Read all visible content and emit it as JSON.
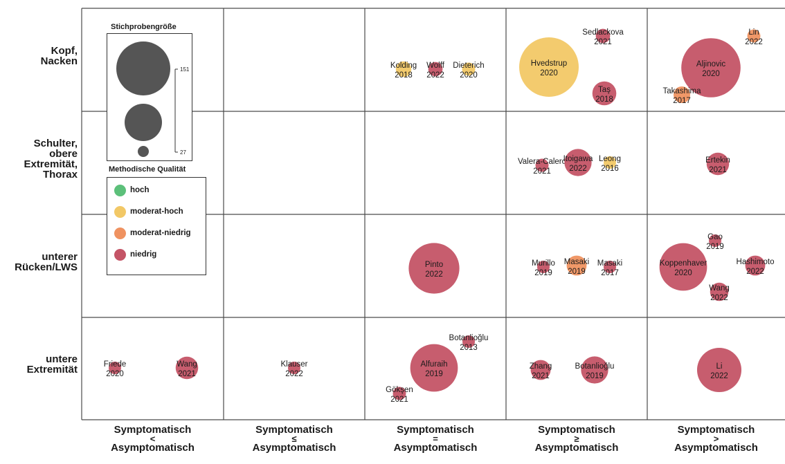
{
  "chart_data": {
    "type": "bubble-matrix",
    "rows": [
      {
        "id": "kopf",
        "lines": [
          "Kopf,",
          "Nacken"
        ]
      },
      {
        "id": "schulter",
        "lines": [
          "Schulter,",
          "obere",
          "Extremität,",
          "Thorax"
        ]
      },
      {
        "id": "ruecken",
        "lines": [
          "unterer",
          "Rücken/LWS"
        ]
      },
      {
        "id": "untere",
        "lines": [
          "untere",
          "Extremität"
        ]
      }
    ],
    "columns": [
      {
        "id": "lt",
        "top": "Symptomatisch",
        "sym": "<",
        "bottom": "Asymptomatisch"
      },
      {
        "id": "le",
        "top": "Symptomatisch",
        "sym": "≤",
        "bottom": "Asymptomatisch"
      },
      {
        "id": "eq",
        "top": "Symptomatisch",
        "sym": "=",
        "bottom": "Asymptomatisch"
      },
      {
        "id": "ge",
        "top": "Symptomatisch",
        "sym": "≥",
        "bottom": "Asymptomatisch"
      },
      {
        "id": "gt",
        "top": "Symptomatisch",
        "sym": ">",
        "bottom": "Asymptomatisch"
      }
    ],
    "quality_colors": {
      "hoch": "#5cc07a",
      "moderat-hoch": "#f2c866",
      "moderat-niedrig": "#ef9260",
      "niedrig": "#c45466"
    },
    "legend": {
      "size_title": "Stichprobengröße",
      "size_max_label": "151",
      "size_min_label": "27",
      "quality_title": "Methodische Qualität",
      "quality_items": [
        {
          "key": "hoch",
          "label": "hoch"
        },
        {
          "key": "moderat-hoch",
          "label": "moderat-hoch"
        },
        {
          "key": "moderat-niedrig",
          "label": "moderat-niedrig"
        },
        {
          "key": "niedrig",
          "label": "niedrig"
        }
      ]
    },
    "studies": [
      {
        "author": "Kolding",
        "year": "2018",
        "row": 0,
        "col": 2,
        "quality": "moderat-hoch",
        "size": 32
      },
      {
        "author": "Wolff",
        "year": "2022",
        "row": 0,
        "col": 2,
        "quality": "niedrig",
        "size": 30
      },
      {
        "author": "Dieterich",
        "year": "2020",
        "row": 0,
        "col": 2,
        "quality": "moderat-hoch",
        "size": 28
      },
      {
        "author": "Hvedstrup",
        "year": "2020",
        "row": 0,
        "col": 3,
        "quality": "moderat-hoch",
        "size": 151
      },
      {
        "author": "Sedlackova",
        "year": "2021",
        "row": 0,
        "col": 3,
        "quality": "niedrig",
        "size": 30
      },
      {
        "author": "Taş",
        "year": "2018",
        "row": 0,
        "col": 3,
        "quality": "niedrig",
        "size": 48
      },
      {
        "author": "Lin",
        "year": "2022",
        "row": 0,
        "col": 4,
        "quality": "moderat-niedrig",
        "size": 28
      },
      {
        "author": "Aljinovic",
        "year": "2020",
        "row": 0,
        "col": 4,
        "quality": "niedrig",
        "size": 150
      },
      {
        "author": "Takashima",
        "year": "2017",
        "row": 0,
        "col": 4,
        "quality": "moderat-niedrig",
        "size": 34
      },
      {
        "author": "Valera-Calero",
        "year": "2021",
        "row": 1,
        "col": 3,
        "quality": "niedrig",
        "size": 28
      },
      {
        "author": "Itoigawa",
        "year": "2022",
        "row": 1,
        "col": 3,
        "quality": "niedrig",
        "size": 55
      },
      {
        "author": "Leong",
        "year": "2016",
        "row": 1,
        "col": 3,
        "quality": "moderat-hoch",
        "size": 27
      },
      {
        "author": "Ertekin",
        "year": "2021",
        "row": 1,
        "col": 4,
        "quality": "niedrig",
        "size": 45
      },
      {
        "author": "Pinto",
        "year": "2022",
        "row": 2,
        "col": 2,
        "quality": "niedrig",
        "size": 120
      },
      {
        "author": "Murillo",
        "year": "2019",
        "row": 2,
        "col": 3,
        "quality": "niedrig",
        "size": 27
      },
      {
        "author": "Masaki",
        "year": "2019",
        "row": 2,
        "col": 3,
        "quality": "moderat-niedrig",
        "size": 40
      },
      {
        "author": "Masaki",
        "year": "2017",
        "row": 2,
        "col": 3,
        "quality": "niedrig",
        "size": 27
      },
      {
        "author": "Gao",
        "year": "2019",
        "row": 2,
        "col": 4,
        "quality": "niedrig",
        "size": 27
      },
      {
        "author": "Koppenhaver",
        "year": "2020",
        "row": 2,
        "col": 4,
        "quality": "niedrig",
        "size": 110
      },
      {
        "author": "Hashimoto",
        "year": "2022",
        "row": 2,
        "col": 4,
        "quality": "niedrig",
        "size": 40
      },
      {
        "author": "Wang",
        "year": "2022",
        "row": 2,
        "col": 4,
        "quality": "niedrig",
        "size": 37
      },
      {
        "author": "Friede",
        "year": "2020",
        "row": 3,
        "col": 0,
        "quality": "niedrig",
        "size": 27
      },
      {
        "author": "Wang",
        "year": "2021",
        "row": 3,
        "col": 0,
        "quality": "niedrig",
        "size": 45
      },
      {
        "author": "Klauser",
        "year": "2022",
        "row": 3,
        "col": 1,
        "quality": "niedrig",
        "size": 27
      },
      {
        "author": "Botanlioğlu",
        "year": "2013",
        "row": 3,
        "col": 2,
        "quality": "niedrig",
        "size": 27
      },
      {
        "author": "Alfuraih",
        "year": "2019",
        "row": 3,
        "col": 2,
        "quality": "niedrig",
        "size": 110
      },
      {
        "author": "Gökşen",
        "year": "2021",
        "row": 3,
        "col": 2,
        "quality": "niedrig",
        "size": 28
      },
      {
        "author": "Zhang",
        "year": "2021",
        "row": 3,
        "col": 3,
        "quality": "niedrig",
        "size": 40
      },
      {
        "author": "Botanlioğlu",
        "year": "2019",
        "row": 3,
        "col": 3,
        "quality": "niedrig",
        "size": 55
      },
      {
        "author": "Li",
        "year": "2022",
        "row": 3,
        "col": 4,
        "quality": "niedrig",
        "size": 100
      }
    ]
  }
}
